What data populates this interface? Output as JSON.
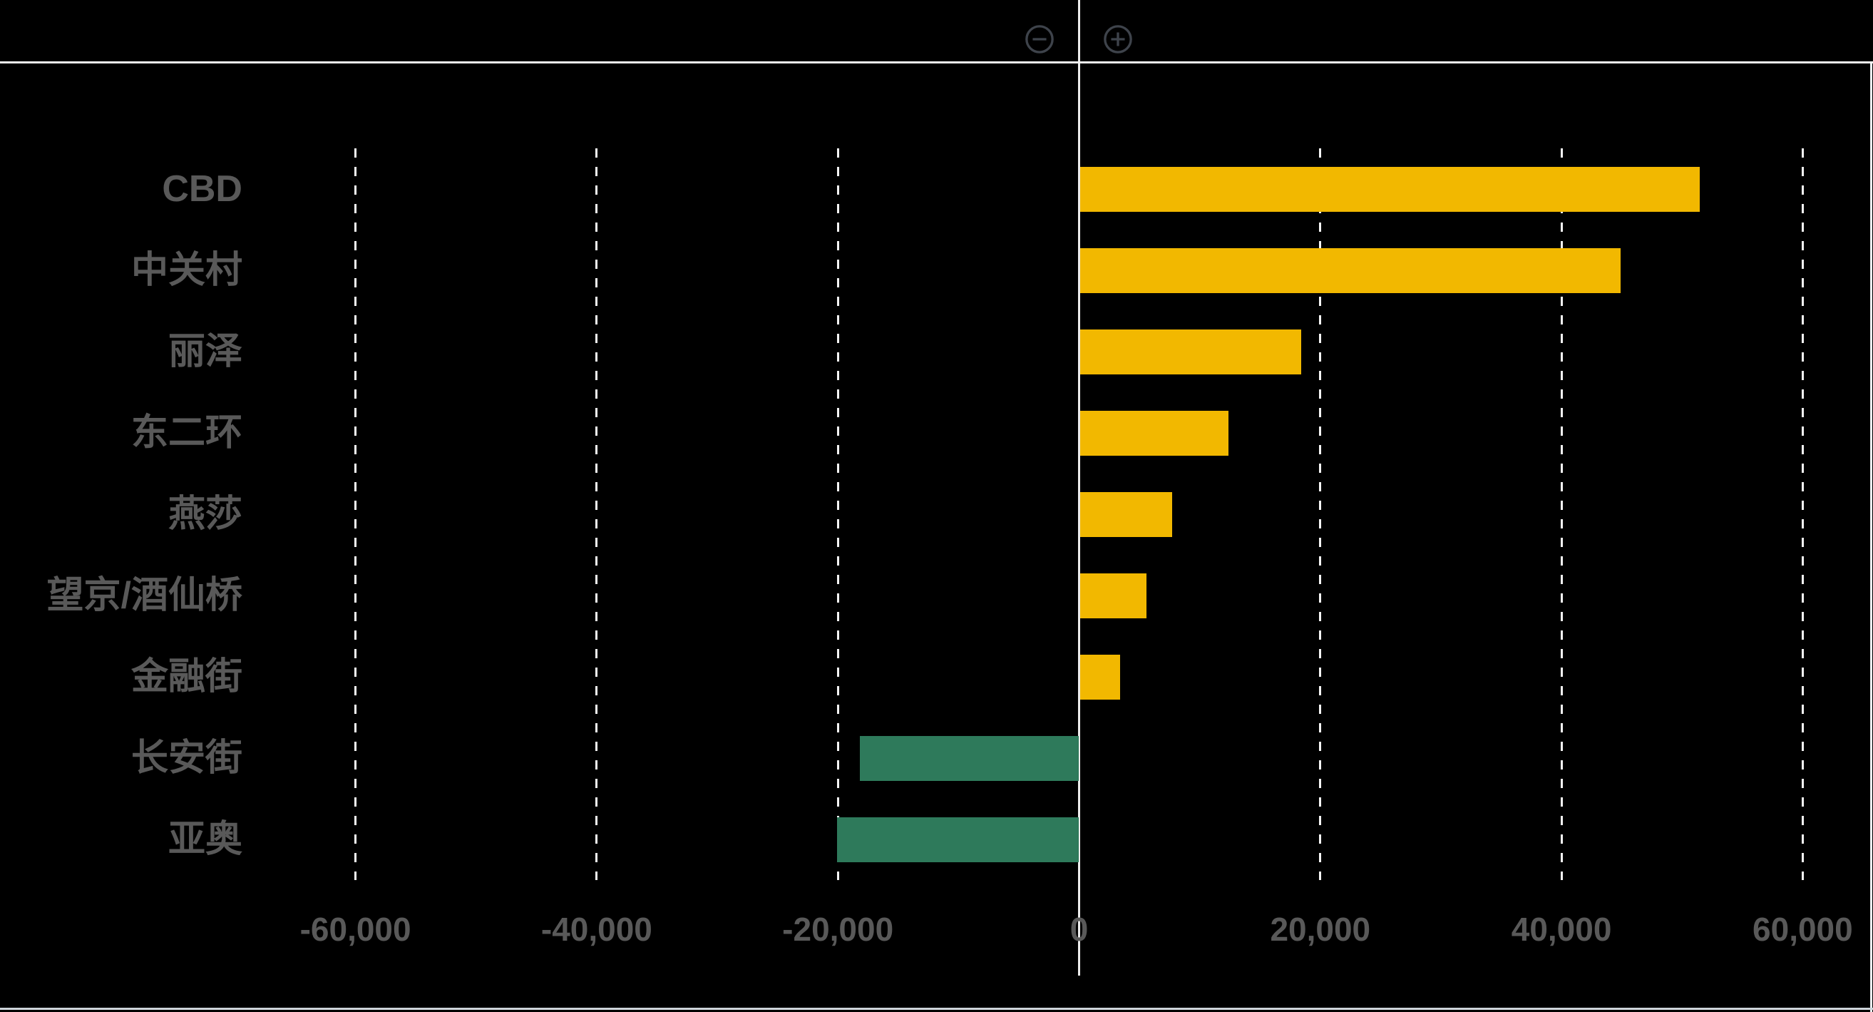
{
  "toolbar": {
    "zoom_out_icon": "circle-minus",
    "zoom_in_icon": "circle-plus"
  },
  "colors": {
    "background": "#000000",
    "positive_bar": "#F2B800",
    "negative_bar": "#2E7A5B",
    "label_text": "#595959",
    "axis_line": "#ececec",
    "gridline": "#f5f5f5",
    "icon_stroke": "#3E434B"
  },
  "chart_data": {
    "type": "bar",
    "orientation": "horizontal",
    "title": "",
    "xlabel": "",
    "ylabel": "",
    "grid": true,
    "legend": false,
    "categories": [
      "CBD",
      "中关村",
      "丽泽",
      "东二环",
      "燕莎",
      "望京/酒仙桥",
      "金融街",
      "长安街",
      "亚奥"
    ],
    "values": [
      51400,
      44800,
      18300,
      12300,
      7600,
      5500,
      3300,
      -18200,
      -20100
    ],
    "xlim": [
      -60000,
      60000
    ],
    "x_ticks": [
      -60000,
      -40000,
      -20000,
      0,
      20000,
      40000,
      60000
    ],
    "x_tick_labels": [
      "-60,000",
      "-40,000",
      "-20,000",
      "0",
      "20,000",
      "40,000",
      "60,000"
    ]
  }
}
